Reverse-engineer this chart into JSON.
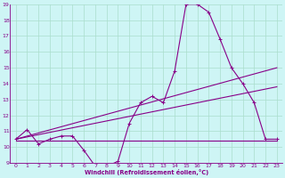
{
  "xlabel": "Windchill (Refroidissement éolien,°C)",
  "bg_color": "#cef5f5",
  "grid_color": "#aaddcc",
  "line_color": "#880088",
  "spine_color": "#880088",
  "xlim": [
    -0.5,
    23.5
  ],
  "ylim": [
    9,
    19
  ],
  "xticks": [
    0,
    1,
    2,
    3,
    4,
    5,
    6,
    7,
    8,
    9,
    10,
    11,
    12,
    13,
    14,
    15,
    16,
    17,
    18,
    19,
    20,
    21,
    22,
    23
  ],
  "yticks": [
    9,
    10,
    11,
    12,
    13,
    14,
    15,
    16,
    17,
    18,
    19
  ],
  "curve1_x": [
    0,
    1,
    2,
    3,
    4,
    5,
    6,
    7,
    8,
    9,
    10,
    11,
    12,
    13,
    14,
    15,
    16,
    17,
    18,
    19,
    20,
    21,
    22,
    23
  ],
  "curve1_y": [
    10.5,
    11.1,
    10.2,
    10.5,
    10.7,
    10.7,
    9.8,
    8.8,
    8.8,
    9.1,
    11.5,
    12.8,
    13.2,
    12.8,
    14.8,
    19.0,
    19.0,
    18.5,
    16.8,
    15.0,
    14.0,
    12.8,
    10.5,
    10.5
  ],
  "curve2_x": [
    0,
    23
  ],
  "curve2_y": [
    10.5,
    15.0
  ],
  "curve3_x": [
    0,
    23
  ],
  "curve3_y": [
    10.5,
    13.8
  ],
  "curve4_x": [
    0,
    23
  ],
  "curve4_y": [
    10.4,
    10.4
  ]
}
